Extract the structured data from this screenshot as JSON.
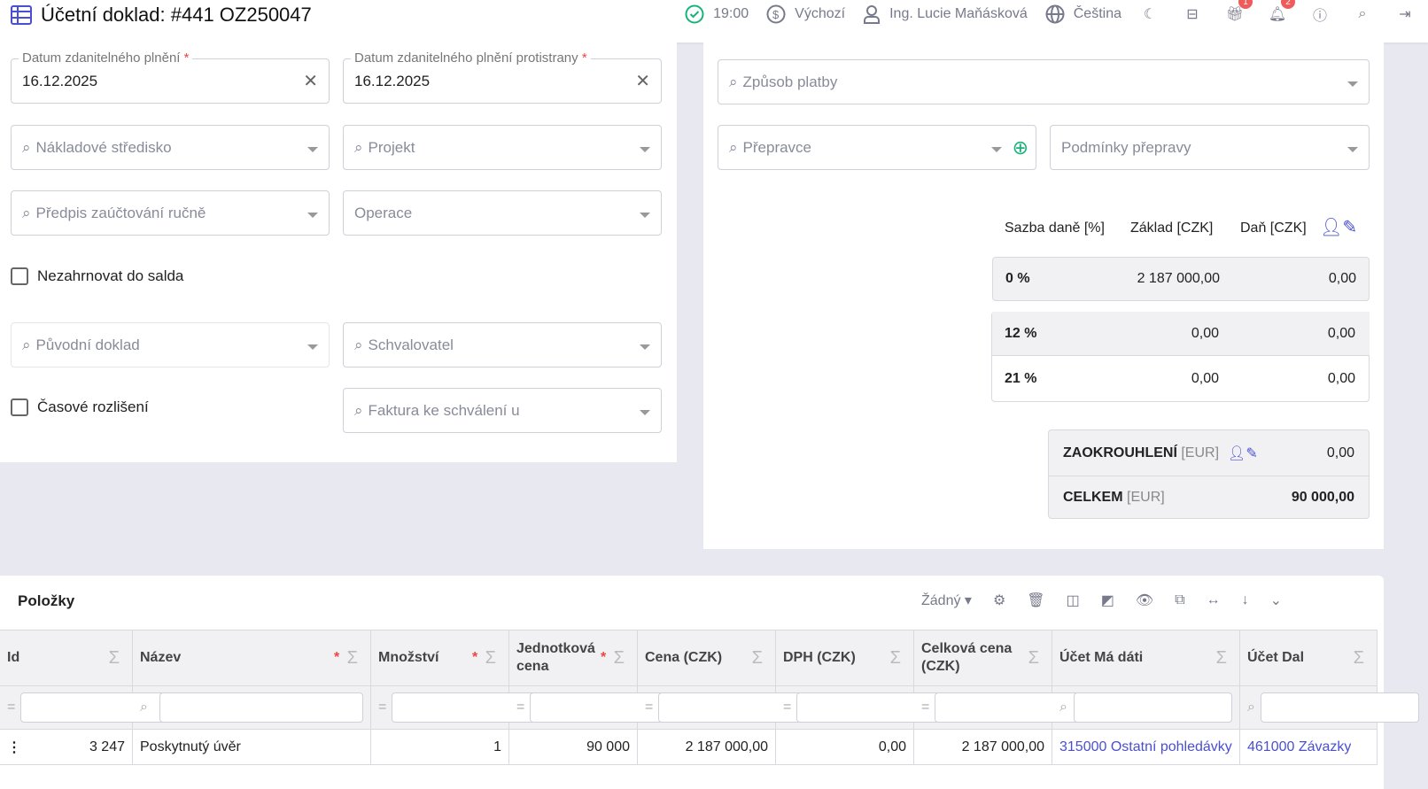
{
  "header": {
    "title": "Účetní doklad: #441 OZ250047",
    "time": "19:00",
    "currency": "Výchozí",
    "user": "Ing. Lucie Maňásková",
    "language": "Čeština",
    "gift_badge": "1",
    "bell_badge": "2"
  },
  "left": {
    "date1_label": "Datum zdanitelného plnění",
    "date1_value": "16.12.2025",
    "date2_label": "Datum zdanitelného plnění protistrany",
    "date2_value": "16.12.2025",
    "cost_center": "Nákladové středisko",
    "project": "Projekt",
    "posting": "Předpis zaúčtování ručně",
    "operation": "Operace",
    "exclude_balance": "Nezahrnovat do salda",
    "original_doc": "Původní doklad",
    "approver": "Schvalovatel",
    "accrual": "Časové rozlišení",
    "invoice_approval": "Faktura ke schválení u",
    "req": "*"
  },
  "right": {
    "payment": "Způsob platby",
    "carrier": "Přepravce",
    "transport_terms": "Podmínky přepravy",
    "tax_headers": [
      "Sazba daně [%]",
      "Základ [CZK]",
      "Daň [CZK]"
    ],
    "tax_rows": [
      {
        "rate": "0 %",
        "base": "2 187 000,00",
        "tax": "0,00"
      },
      {
        "rate": "12 %",
        "base": "0,00",
        "tax": "0,00"
      },
      {
        "rate": "21 %",
        "base": "0,00",
        "tax": "0,00"
      }
    ],
    "rounding_label": "ZAOKROUHLENÍ",
    "rounding_cur": "[EUR]",
    "rounding_value": "0,00",
    "total_label": "CELKEM",
    "total_cur": "[EUR]",
    "total_value": "90 000,00"
  },
  "items": {
    "title": "Položky",
    "view": "Žádný",
    "columns": [
      {
        "label": "Id"
      },
      {
        "label": "Název",
        "req": "*"
      },
      {
        "label": "Množství",
        "req": "*"
      },
      {
        "label": "Jednotková cena",
        "req": "*"
      },
      {
        "label": "Cena (CZK)"
      },
      {
        "label": "DPH (CZK)"
      },
      {
        "label": "Celková cena (CZK)"
      },
      {
        "label": "Účet Má dáti"
      },
      {
        "label": "Účet Dal"
      }
    ],
    "rows": [
      {
        "id": "3 247",
        "name": "Poskytnutý úvěr",
        "qty": "1",
        "unit_price": "90 000",
        "price": "2 187 000,00",
        "vat": "0,00",
        "total": "2 187 000,00",
        "debit": "315000 Ostatní pohledávky",
        "credit": "461000 Závazky"
      }
    ]
  },
  "colors": {
    "accent": "#4a4fd0",
    "ok": "#19b37a",
    "badge": "#ef5a5a"
  }
}
